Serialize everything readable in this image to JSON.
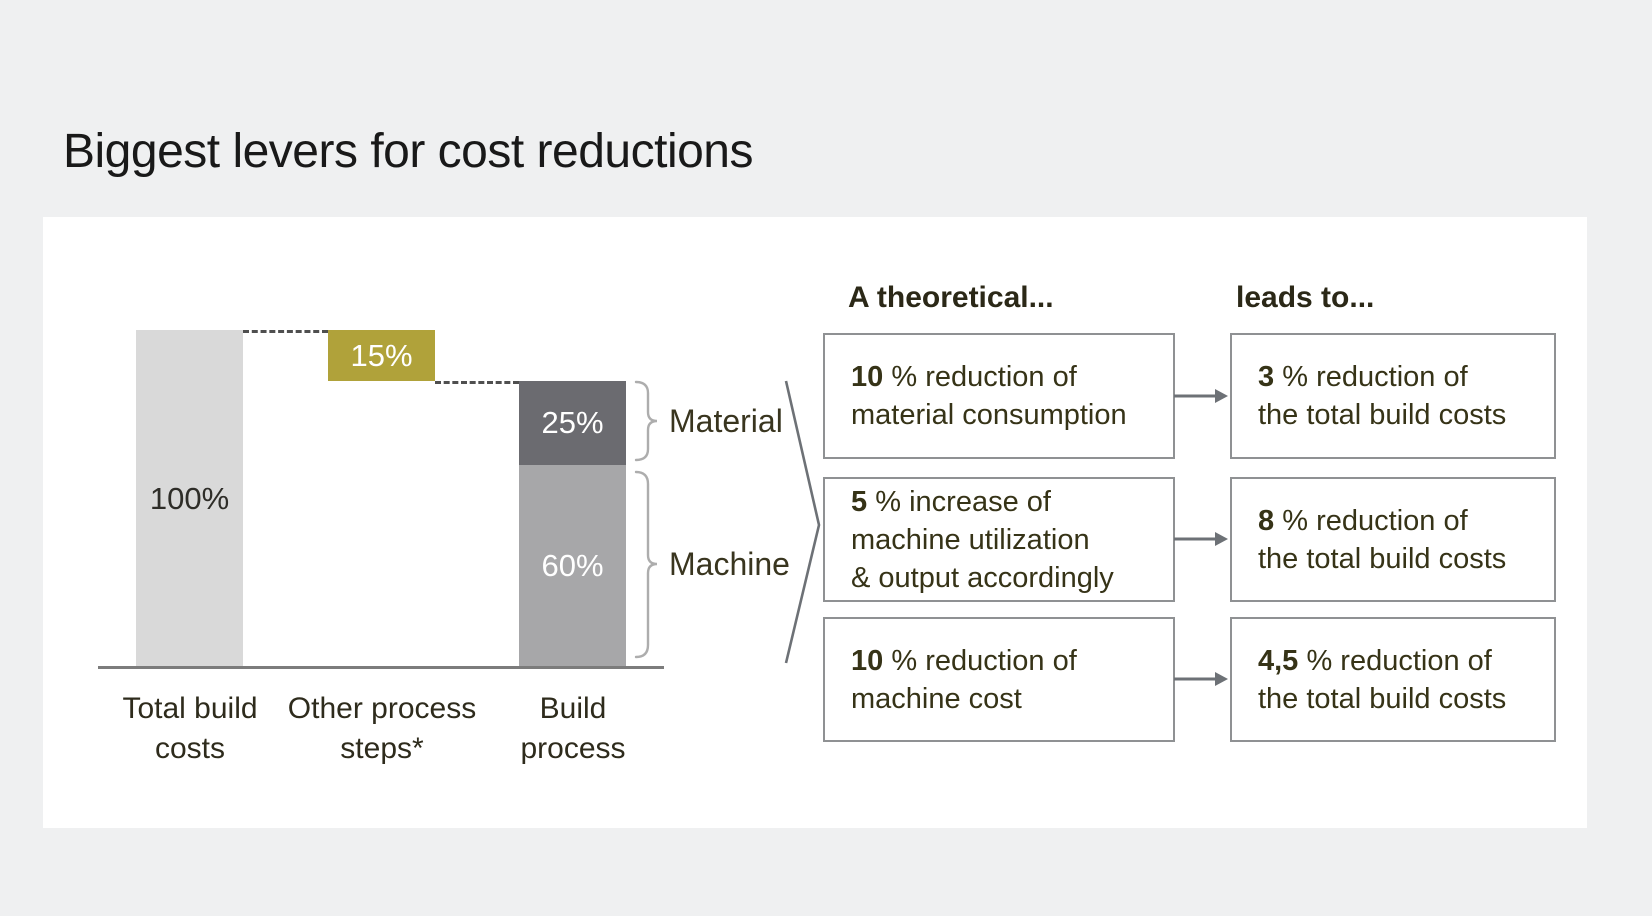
{
  "page": {
    "title": "Biggest levers for cost reductions"
  },
  "chart_data": {
    "type": "bar",
    "subtype": "waterfall-stacked",
    "title": "Biggest levers for cost reductions",
    "unit": "%",
    "ylim": [
      0,
      100
    ],
    "grid": false,
    "categories": [
      "Total build costs",
      "Other process steps*",
      "Build process"
    ],
    "axis_labels": [
      [
        "Total build",
        "costs"
      ],
      [
        "Other process",
        "steps*"
      ],
      [
        "Build",
        "process"
      ]
    ],
    "bars": [
      {
        "category": "Total build costs",
        "label": "100%",
        "value": 100,
        "bottom": 0,
        "color": "#d9d9d9",
        "label_color": "#2e2d28"
      },
      {
        "category": "Other process steps*",
        "label": "15%",
        "value": 15,
        "bottom": 85,
        "color": "#b0a23a",
        "label_color": "#ffffff"
      },
      {
        "category": "Build process",
        "segment": "Material",
        "label": "25%",
        "value": 25,
        "bottom": 60,
        "color": "#6b6b70",
        "label_color": "#ffffff"
      },
      {
        "category": "Build process",
        "segment": "Machine",
        "label": "60%",
        "value": 60,
        "bottom": 0,
        "color": "#a7a7a9",
        "label_color": "#ffffff"
      }
    ],
    "connector_levels": [
      100,
      85
    ],
    "segment_labels": [
      "Material",
      "Machine"
    ]
  },
  "flow": {
    "left_header": "A theoretical...",
    "right_header": "leads to...",
    "rows": [
      {
        "cause_num": "10",
        "cause_line1": "% reduction of",
        "cause_line2": "material consumption",
        "cause_line3": "",
        "effect_num": "3",
        "effect_line1": "% reduction of",
        "effect_line2": "the total build costs"
      },
      {
        "cause_num": "5",
        "cause_line1": "% increase of",
        "cause_line2": "machine utilization",
        "cause_line3": "& output accordingly",
        "effect_num": "8",
        "effect_line1": "% reduction of",
        "effect_line2": "the total build costs"
      },
      {
        "cause_num": "10",
        "cause_line1": "% reduction of",
        "cause_line2": "machine cost",
        "cause_line3": "",
        "effect_num": "4,5",
        "effect_line1": "% reduction of",
        "effect_line2": "the total build costs"
      }
    ]
  }
}
